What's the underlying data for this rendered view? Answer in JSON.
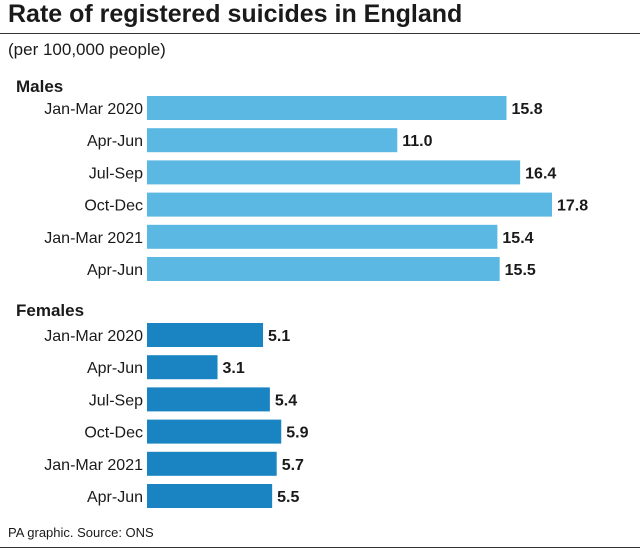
{
  "title": "Rate of registered suicides in England",
  "subtitle": "(per 100,000 people)",
  "source": "PA graphic. Source: ONS",
  "chart_data": {
    "type": "bar",
    "orientation": "horizontal",
    "groups": [
      {
        "name": "Males",
        "color": "#5bb8e3",
        "categories": [
          "Jan-Mar 2020",
          "Apr-Jun",
          "Jul-Sep",
          "Oct-Dec",
          "Jan-Mar 2021",
          "Apr-Jun"
        ],
        "values": [
          15.8,
          11.0,
          16.4,
          17.8,
          15.4,
          15.5
        ],
        "labels": [
          "15.8",
          "11.0",
          "16.4",
          "17.8",
          "15.4",
          "15.5"
        ]
      },
      {
        "name": "Females",
        "color": "#1a84c2",
        "categories": [
          "Jan-Mar 2020",
          "Apr-Jun",
          "Jul-Sep",
          "Oct-Dec",
          "Jan-Mar 2021",
          "Apr-Jun"
        ],
        "values": [
          5.1,
          3.1,
          5.4,
          5.9,
          5.7,
          5.5
        ],
        "labels": [
          "5.1",
          "3.1",
          "5.4",
          "5.9",
          "5.7",
          "5.5"
        ]
      }
    ],
    "xlim": [
      0,
      17.8
    ],
    "grid": false
  }
}
